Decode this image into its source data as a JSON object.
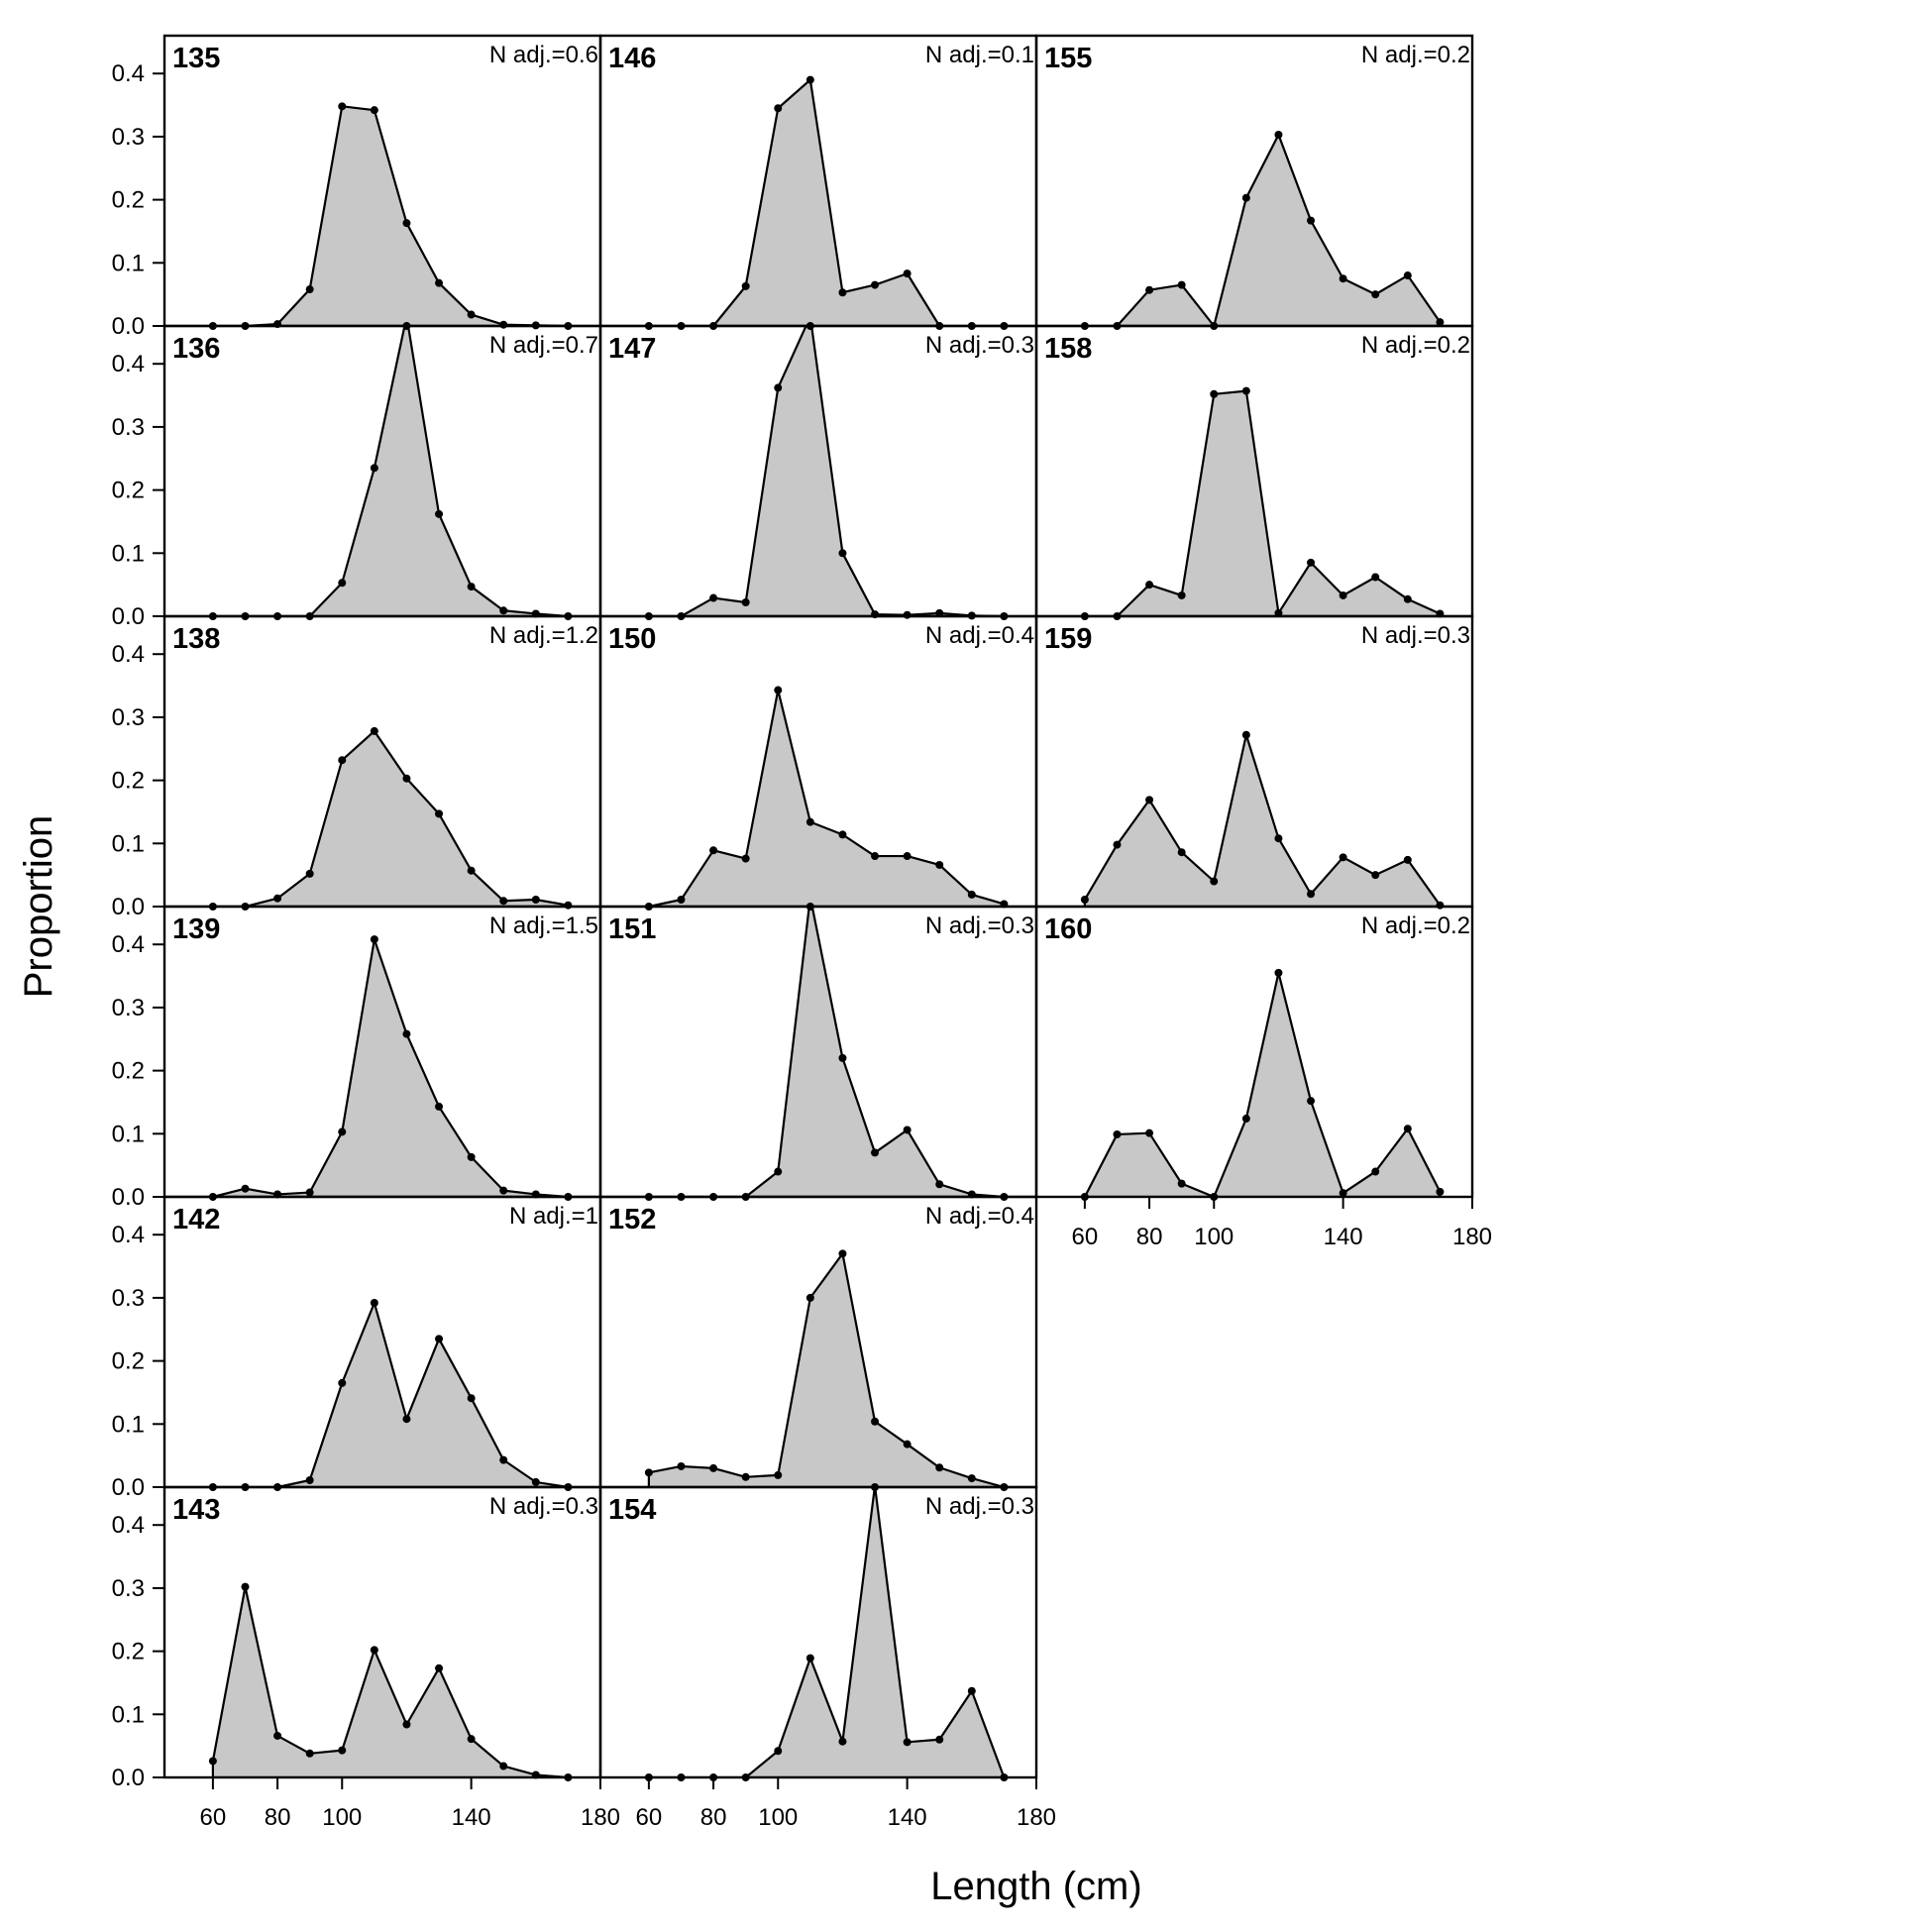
{
  "chart_data": {
    "type": "area",
    "xlabel": "Length (cm)",
    "ylabel": "Proportion",
    "xlim": [
      45,
      180
    ],
    "ylim": [
      0,
      0.46
    ],
    "x_ticks": [
      60,
      80,
      100,
      140,
      180
    ],
    "y_ticks": [
      0.0,
      0.1,
      0.2,
      0.3,
      0.4
    ],
    "y_tick_labels": [
      "0.0",
      "0.1",
      "0.2",
      "0.3",
      "0.4"
    ],
    "x": [
      60,
      70,
      80,
      90,
      100,
      110,
      120,
      130,
      140,
      150,
      160,
      170
    ],
    "panels": [
      {
        "label": "135",
        "note": "N adj.=0.6",
        "values": [
          0,
          0,
          0.003,
          0.058,
          0.348,
          0.342,
          0.163,
          0.068,
          0.018,
          0.002,
          0.001,
          0
        ]
      },
      {
        "label": "136",
        "note": "N adj.=0.7",
        "values": [
          0,
          0,
          0,
          0,
          0.053,
          0.235,
          0.475,
          0.162,
          0.047,
          0.009,
          0.004,
          0
        ]
      },
      {
        "label": "138",
        "note": "N adj.=1.2",
        "values": [
          0,
          0,
          0.013,
          0.052,
          0.232,
          0.278,
          0.203,
          0.147,
          0.057,
          0.009,
          0.011,
          0.002
        ]
      },
      {
        "label": "139",
        "note": "N adj.=1.5",
        "values": [
          0,
          0.013,
          0.004,
          0.007,
          0.103,
          0.408,
          0.258,
          0.143,
          0.063,
          0.01,
          0.004,
          0
        ]
      },
      {
        "label": "142",
        "note": "N adj.=1",
        "values": [
          0,
          0,
          0,
          0.011,
          0.165,
          0.292,
          0.108,
          0.235,
          0.141,
          0.043,
          0.008,
          0
        ]
      },
      {
        "label": "143",
        "note": "N adj.=0.3",
        "values": [
          0.026,
          0.302,
          0.066,
          0.038,
          0.043,
          0.202,
          0.084,
          0.173,
          0.061,
          0.018,
          0.004,
          0
        ]
      },
      {
        "label": "146",
        "note": "N adj.=0.1",
        "values": [
          0,
          0,
          0,
          0.063,
          0.345,
          0.39,
          0.053,
          0.065,
          0.083,
          0,
          0,
          0
        ]
      },
      {
        "label": "147",
        "note": "N adj.=0.3",
        "values": [
          0,
          0,
          0.029,
          0.022,
          0.362,
          0.475,
          0.1,
          0.003,
          0.002,
          0.005,
          0.001,
          0
        ]
      },
      {
        "label": "150",
        "note": "N adj.=0.4",
        "values": [
          0,
          0.011,
          0.089,
          0.076,
          0.343,
          0.134,
          0.114,
          0.08,
          0.08,
          0.066,
          0.019,
          0.004
        ]
      },
      {
        "label": "151",
        "note": "N adj.=0.3",
        "values": [
          0,
          0,
          0,
          0,
          0.04,
          0.475,
          0.22,
          0.07,
          0.106,
          0.02,
          0.004,
          0
        ]
      },
      {
        "label": "152",
        "note": "N adj.=0.4",
        "values": [
          0.023,
          0.033,
          0.03,
          0.016,
          0.019,
          0.3,
          0.37,
          0.104,
          0.068,
          0.031,
          0.014,
          0
        ]
      },
      {
        "label": "154",
        "note": "N adj.=0.3",
        "values": [
          0,
          0,
          0,
          0,
          0.042,
          0.189,
          0.057,
          0.462,
          0.056,
          0.06,
          0.137,
          0
        ]
      },
      {
        "label": "155",
        "note": "N adj.=0.2",
        "values": [
          0,
          0,
          0.057,
          0.065,
          0,
          0.203,
          0.303,
          0.167,
          0.075,
          0.05,
          0.08,
          0.006
        ]
      },
      {
        "label": "158",
        "note": "N adj.=0.2",
        "values": [
          0,
          0,
          0.05,
          0.033,
          0.352,
          0.357,
          0.005,
          0.085,
          0.033,
          0.062,
          0.027,
          0.004
        ]
      },
      {
        "label": "159",
        "note": "N adj.=0.3",
        "values": [
          0.011,
          0.098,
          0.169,
          0.086,
          0.04,
          0.272,
          0.108,
          0.02,
          0.078,
          0.05,
          0.074,
          0.002
        ]
      },
      {
        "label": "160",
        "note": "N adj.=0.2",
        "values": [
          0,
          0.099,
          0.101,
          0.021,
          0,
          0.124,
          0.355,
          0.152,
          0.006,
          0.04,
          0.108,
          0.008
        ]
      }
    ]
  }
}
